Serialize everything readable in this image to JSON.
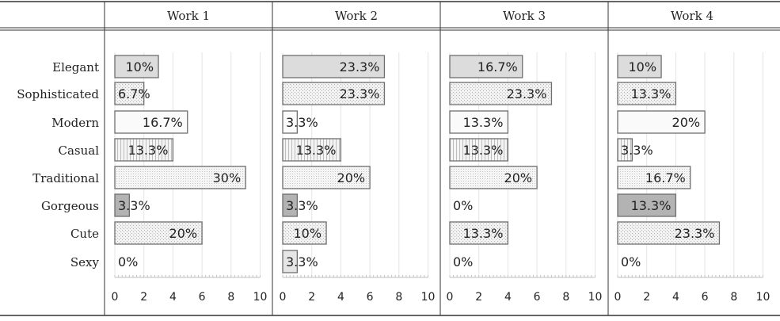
{
  "table": {
    "columns": [
      "Work 1",
      "Work 2",
      "Work 3",
      "Work 4"
    ]
  },
  "chart_data": {
    "type": "bar",
    "orientation": "horizontal",
    "categories": [
      "Elegant",
      "Sophisticated",
      "Modern",
      "Casual",
      "Traditional",
      "Gorgeous",
      "Cute",
      "Sexy"
    ],
    "xlim": [
      0,
      10
    ],
    "xticks": [
      "0",
      "2",
      "4",
      "6",
      "8",
      "10"
    ],
    "series": [
      {
        "name": "Work 1",
        "values": [
          3,
          2,
          5,
          4,
          9,
          1,
          6,
          0
        ],
        "labels": [
          "10%",
          "6.7%",
          "16.7%",
          "13.3%",
          "30%",
          "3.3%",
          "20%",
          "0%"
        ]
      },
      {
        "name": "Work 2",
        "values": [
          7,
          7,
          1,
          4,
          6,
          1,
          3,
          1
        ],
        "labels": [
          "23.3%",
          "23.3%",
          "3.3%",
          "13.3%",
          "20%",
          "3.3%",
          "10%",
          "3.3%"
        ]
      },
      {
        "name": "Work 3",
        "values": [
          5,
          7,
          4,
          4,
          6,
          0,
          4,
          0
        ],
        "labels": [
          "16.7%",
          "23.3%",
          "13.3%",
          "13.3%",
          "20%",
          "0%",
          "13.3%",
          "0%"
        ]
      },
      {
        "name": "Work 4",
        "values": [
          3,
          4,
          6,
          1,
          5,
          4,
          7,
          0
        ],
        "labels": [
          "10%",
          "13.3%",
          "20%",
          "3.3%",
          "16.7%",
          "13.3%",
          "23.3%",
          "0%"
        ]
      }
    ]
  }
}
